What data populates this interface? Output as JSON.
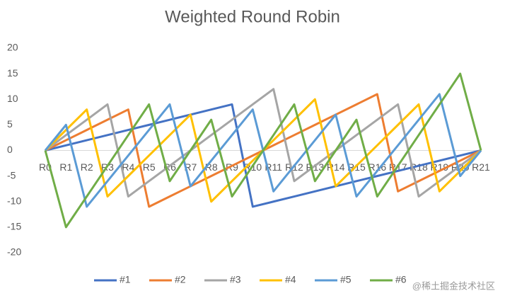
{
  "chart_data": {
    "type": "line",
    "title": "Weighted Round Robin",
    "categories": [
      "R0",
      "R1",
      "R2",
      "R3",
      "R4",
      "R5",
      "R6",
      "R7",
      "R8",
      "R9",
      "R10",
      "R11",
      "R12",
      "R13",
      "R14",
      "R15",
      "R16",
      "R17",
      "R18",
      "R19",
      "R20",
      "R21"
    ],
    "series": [
      {
        "name": "#1",
        "color": "#4472c4",
        "values": [
          0,
          1,
          2,
          3,
          4,
          5,
          6,
          7,
          8,
          9,
          -11,
          -10,
          -9,
          -8,
          -7,
          -6,
          -5,
          -4,
          -3,
          -2,
          -1,
          0
        ]
      },
      {
        "name": "#2",
        "color": "#ed7d31",
        "values": [
          0,
          2,
          4,
          6,
          8,
          -11,
          -9,
          -7,
          -5,
          -3,
          -1,
          1,
          3,
          5,
          7,
          9,
          11,
          -8,
          -6,
          -4,
          -2,
          0
        ]
      },
      {
        "name": "#3",
        "color": "#a5a5a5",
        "values": [
          0,
          3,
          6,
          9,
          -9,
          -6,
          -3,
          0,
          3,
          6,
          9,
          12,
          -6,
          -3,
          0,
          3,
          6,
          9,
          -9,
          -6,
          -3,
          0
        ]
      },
      {
        "name": "#4",
        "color": "#ffc000",
        "values": [
          0,
          4,
          8,
          -9,
          -5,
          -1,
          3,
          7,
          -10,
          -6,
          -2,
          2,
          6,
          10,
          -7,
          -3,
          1,
          5,
          9,
          -8,
          -4,
          0
        ]
      },
      {
        "name": "#5",
        "color": "#5b9bd5",
        "values": [
          0,
          5,
          -11,
          -6,
          -1,
          4,
          9,
          -7,
          -2,
          3,
          8,
          -8,
          -3,
          2,
          7,
          -9,
          -4,
          1,
          6,
          11,
          -5,
          0
        ]
      },
      {
        "name": "#6",
        "color": "#70ad47",
        "values": [
          0,
          -15,
          -9,
          -3,
          3,
          9,
          -6,
          0,
          6,
          -9,
          -3,
          3,
          9,
          -6,
          0,
          6,
          -9,
          -3,
          3,
          9,
          15,
          0
        ]
      }
    ],
    "ylim": [
      -20,
      20
    ],
    "yticks": [
      -20,
      -15,
      -10,
      -5,
      0,
      5,
      10,
      15,
      20
    ],
    "grid": false,
    "legend": "bottom"
  },
  "watermark": "@稀土掘金技术社区"
}
